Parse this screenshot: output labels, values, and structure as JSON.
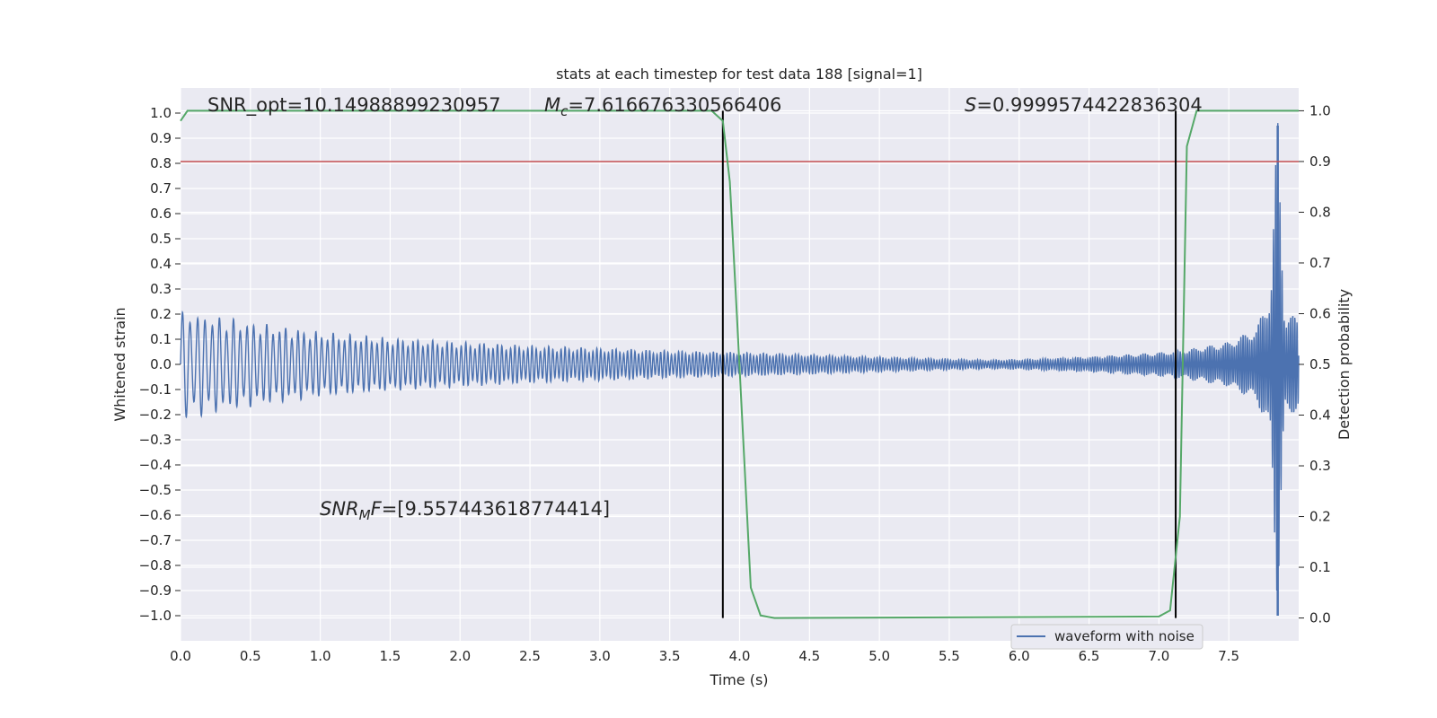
{
  "chart_data": {
    "type": "line",
    "title": "stats at each timestep for test data 188 [signal=1]",
    "xlabel": "Time (s)",
    "ylabel": "Whitened strain",
    "ylabel_right": "Detection probability",
    "xlim": [
      0,
      8.0
    ],
    "ylim": [
      -1.1,
      1.1
    ],
    "ylim_right": [
      -0.045,
      1.045
    ],
    "x_ticks": [
      "0.0",
      "0.5",
      "1.0",
      "1.5",
      "2.0",
      "2.5",
      "3.0",
      "3.5",
      "4.0",
      "4.5",
      "5.0",
      "5.5",
      "6.0",
      "6.5",
      "7.0",
      "7.5"
    ],
    "y_ticks": [
      "1.0",
      "0.9",
      "0.8",
      "0.7",
      "0.6",
      "0.5",
      "0.4",
      "0.3",
      "0.2",
      "0.1",
      "0.0",
      "−0.1",
      "−0.2",
      "−0.3",
      "−0.4",
      "−0.5",
      "−0.6",
      "−0.7",
      "−0.8",
      "−0.9",
      "−1.0"
    ],
    "y_ticks_right": [
      "1.0",
      "0.9",
      "0.8",
      "0.7",
      "0.6",
      "0.5",
      "0.4",
      "0.3",
      "0.2",
      "0.1",
      "0.0"
    ],
    "grid": true,
    "legend": {
      "placement": "lower-right",
      "entries": [
        "waveform with noise"
      ]
    },
    "waveform_envelope": {
      "name": "waveform with noise",
      "color": "#4c72b0",
      "x": [
        0.0,
        0.5,
        1.0,
        1.5,
        2.0,
        2.5,
        3.0,
        3.5,
        4.0,
        4.5,
        5.0,
        5.5,
        5.8,
        6.0,
        6.5,
        7.0,
        7.2,
        7.5,
        7.7,
        7.8,
        7.85,
        7.9,
        8.0
      ],
      "amp": [
        0.22,
        0.17,
        0.13,
        0.105,
        0.09,
        0.075,
        0.065,
        0.055,
        0.048,
        0.04,
        0.03,
        0.022,
        0.018,
        0.02,
        0.03,
        0.048,
        0.06,
        0.09,
        0.15,
        0.3,
        1.0,
        0.2,
        0.2
      ]
    },
    "probability": {
      "color": "#55a868",
      "x": [
        0.0,
        0.05,
        3.8,
        3.88,
        3.93,
        3.98,
        4.08,
        4.15,
        4.25,
        7.0,
        7.08,
        7.15,
        7.2,
        7.27,
        8.0
      ],
      "y": [
        0.98,
        1.0,
        1.0,
        0.98,
        0.86,
        0.6,
        0.06,
        0.005,
        0.0,
        0.003,
        0.015,
        0.2,
        0.93,
        1.0,
        1.0
      ]
    },
    "threshold": {
      "y": 0.9,
      "axis": "right",
      "color": "#c44e52"
    },
    "vlines": [
      3.88,
      7.12
    ],
    "annotations": {
      "snr_opt": "SNR_opt=10.14988899230957",
      "mc_symbol": "M",
      "mc_sub": "c",
      "mc_value": "=7.616676330566406",
      "s_symbol": "S",
      "s_value": "=0.9999574422836304",
      "snrmf_symbol": "SNR",
      "snrmf_sub": "M",
      "snrmf_f": "F",
      "snrmf_value": "=[9.557443618774414]"
    }
  }
}
